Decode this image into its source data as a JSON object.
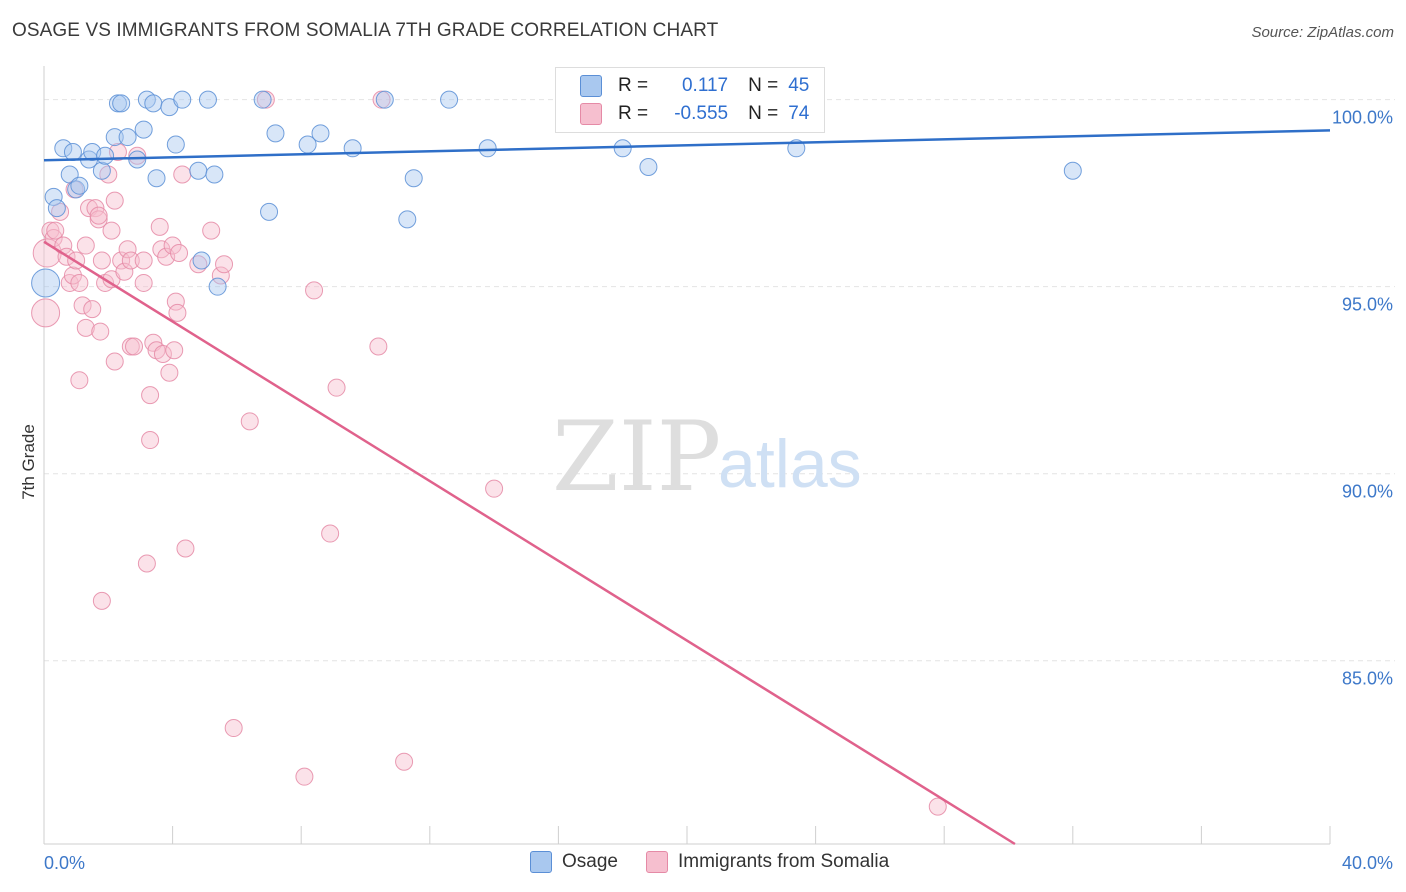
{
  "title": "OSAGE VS IMMIGRANTS FROM SOMALIA 7TH GRADE CORRELATION CHART",
  "source": "Source: ZipAtlas.com",
  "watermark": {
    "zip": "ZIP",
    "atlas": "atlas"
  },
  "legend": {
    "rows": [
      {
        "r_label": "R =",
        "r_value": "0.117",
        "n_label": "N =",
        "n_value": "45"
      },
      {
        "r_label": "R =",
        "r_value": "-0.555",
        "n_label": "N =",
        "n_value": "74"
      }
    ]
  },
  "bottom_legend": [
    "Osage",
    "Immigrants from Somalia"
  ],
  "colors": {
    "osage_fill": "#a9c8ef",
    "osage_stroke": "#5b8fd6",
    "osage_line": "#2f6fc8",
    "somalia_fill": "#f6bfcf",
    "somalia_stroke": "#e58aa6",
    "somalia_line": "#e0628c",
    "axis_text": "#3d78c9",
    "grid": "#e4e4e4"
  },
  "chart_data": {
    "type": "scatter",
    "title": "OSAGE VS IMMIGRANTS FROM SOMALIA 7TH GRADE CORRELATION CHART",
    "xlabel": "",
    "ylabel": "7th Grade",
    "xlim": [
      0,
      40
    ],
    "ylim": [
      80.1,
      100.9
    ],
    "x_tick_labels": [
      "0.0%",
      "40.0%"
    ],
    "y_ticks": [
      85,
      90,
      95,
      100
    ],
    "y_tick_labels": [
      "85.0%",
      "90.0%",
      "95.0%",
      "100.0%"
    ],
    "series": [
      {
        "name": "Osage",
        "r": 0.117,
        "n": 45,
        "trend": {
          "x": [
            0,
            40
          ],
          "y": [
            98.38,
            99.18
          ]
        },
        "points": [
          [
            0.05,
            95.1
          ],
          [
            0.3,
            97.4
          ],
          [
            0.4,
            97.1
          ],
          [
            0.6,
            98.7
          ],
          [
            0.8,
            98.0
          ],
          [
            0.9,
            98.6
          ],
          [
            1.0,
            97.6
          ],
          [
            1.1,
            97.7
          ],
          [
            1.4,
            98.4
          ],
          [
            1.5,
            98.6
          ],
          [
            1.8,
            98.1
          ],
          [
            1.9,
            98.5
          ],
          [
            2.2,
            99.0
          ],
          [
            2.3,
            99.9
          ],
          [
            2.4,
            99.9
          ],
          [
            2.6,
            99.0
          ],
          [
            2.9,
            98.4
          ],
          [
            3.1,
            99.2
          ],
          [
            3.2,
            100.0
          ],
          [
            3.4,
            99.9
          ],
          [
            3.5,
            97.9
          ],
          [
            3.9,
            99.8
          ],
          [
            4.1,
            98.8
          ],
          [
            4.3,
            100.0
          ],
          [
            4.8,
            98.1
          ],
          [
            4.9,
            95.7
          ],
          [
            5.1,
            100.0
          ],
          [
            5.3,
            98.0
          ],
          [
            5.4,
            95.0
          ],
          [
            6.8,
            100.0
          ],
          [
            7.0,
            97.0
          ],
          [
            7.2,
            99.1
          ],
          [
            8.2,
            98.8
          ],
          [
            8.6,
            99.1
          ],
          [
            9.6,
            98.7
          ],
          [
            10.6,
            100.0
          ],
          [
            11.5,
            97.9
          ],
          [
            11.3,
            96.8
          ],
          [
            12.6,
            100.0
          ],
          [
            13.8,
            98.7
          ],
          [
            17.6,
            100.0
          ],
          [
            18.0,
            98.7
          ],
          [
            18.8,
            98.2
          ],
          [
            23.4,
            98.7
          ],
          [
            32.0,
            98.1
          ]
        ]
      },
      {
        "name": "Immigrants from Somalia",
        "r": -0.555,
        "n": 74,
        "trend": {
          "x": [
            0,
            30.2
          ],
          "y": [
            96.2,
            80.1
          ]
        },
        "points": [
          [
            0.05,
            94.3
          ],
          [
            0.1,
            95.9
          ],
          [
            0.2,
            96.5
          ],
          [
            0.3,
            96.3
          ],
          [
            0.35,
            96.5
          ],
          [
            0.5,
            97.0
          ],
          [
            0.6,
            96.1
          ],
          [
            0.7,
            95.8
          ],
          [
            0.8,
            95.1
          ],
          [
            0.9,
            95.3
          ],
          [
            0.95,
            97.6
          ],
          [
            1.0,
            95.7
          ],
          [
            1.1,
            95.1
          ],
          [
            1.1,
            92.5
          ],
          [
            1.2,
            94.5
          ],
          [
            1.3,
            93.9
          ],
          [
            1.3,
            96.1
          ],
          [
            1.4,
            97.1
          ],
          [
            1.5,
            94.4
          ],
          [
            1.6,
            97.1
          ],
          [
            1.7,
            96.8
          ],
          [
            1.7,
            96.9
          ],
          [
            1.75,
            93.8
          ],
          [
            1.8,
            86.6
          ],
          [
            1.8,
            95.7
          ],
          [
            1.9,
            95.1
          ],
          [
            2.0,
            98.0
          ],
          [
            2.1,
            96.5
          ],
          [
            2.1,
            95.2
          ],
          [
            2.2,
            97.3
          ],
          [
            2.2,
            93.0
          ],
          [
            2.3,
            98.6
          ],
          [
            2.4,
            95.7
          ],
          [
            2.5,
            95.4
          ],
          [
            2.6,
            96.0
          ],
          [
            2.7,
            93.4
          ],
          [
            2.7,
            95.7
          ],
          [
            2.8,
            93.4
          ],
          [
            2.9,
            98.5
          ],
          [
            3.1,
            95.7
          ],
          [
            3.1,
            95.1
          ],
          [
            3.2,
            87.6
          ],
          [
            3.3,
            92.1
          ],
          [
            3.3,
            90.9
          ],
          [
            3.4,
            93.5
          ],
          [
            3.5,
            93.3
          ],
          [
            3.6,
            96.6
          ],
          [
            3.65,
            96.0
          ],
          [
            3.7,
            93.2
          ],
          [
            3.8,
            95.8
          ],
          [
            3.9,
            92.7
          ],
          [
            4.0,
            96.1
          ],
          [
            4.05,
            93.3
          ],
          [
            4.1,
            94.6
          ],
          [
            4.15,
            94.3
          ],
          [
            4.3,
            98.0
          ],
          [
            4.4,
            88.0
          ],
          [
            4.8,
            95.6
          ],
          [
            5.2,
            96.5
          ],
          [
            5.5,
            95.3
          ],
          [
            5.6,
            95.6
          ],
          [
            5.9,
            83.2
          ],
          [
            6.4,
            91.4
          ],
          [
            6.9,
            100.0
          ],
          [
            8.1,
            81.9
          ],
          [
            8.4,
            94.9
          ],
          [
            8.9,
            88.4
          ],
          [
            9.1,
            92.3
          ],
          [
            10.4,
            93.4
          ],
          [
            10.5,
            100.0
          ],
          [
            11.2,
            82.3
          ],
          [
            14.0,
            89.6
          ],
          [
            27.8,
            81.1
          ],
          [
            4.2,
            95.9
          ]
        ]
      }
    ]
  }
}
